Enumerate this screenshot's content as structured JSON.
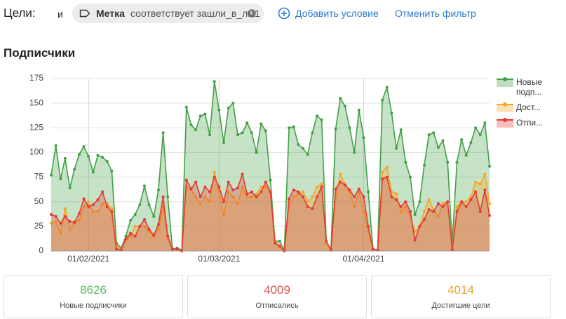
{
  "filter": {
    "label": "Цели:",
    "conjunction": "и",
    "condition": {
      "field": "Метка",
      "text": "соответствует зашли_в_лм1"
    },
    "add": "Добавить условие",
    "cancel": "Отменить фильтр"
  },
  "section_title": "Подписчики",
  "chart_data": {
    "type": "area",
    "x": [
      "24/01/2021",
      "25/01/2021",
      "26/01/2021",
      "27/01/2021",
      "28/01/2021",
      "29/01/2021",
      "30/01/2021",
      "31/01/2021",
      "01/02/2021",
      "02/02/2021",
      "03/02/2021",
      "04/02/2021",
      "05/02/2021",
      "06/02/2021",
      "07/02/2021",
      "08/02/2021",
      "09/02/2021",
      "10/02/2021",
      "11/02/2021",
      "12/02/2021",
      "13/02/2021",
      "14/02/2021",
      "15/02/2021",
      "16/02/2021",
      "17/02/2021",
      "18/02/2021",
      "19/02/2021",
      "20/02/2021",
      "21/02/2021",
      "22/02/2021",
      "23/02/2021",
      "24/02/2021",
      "25/02/2021",
      "26/02/2021",
      "27/02/2021",
      "28/02/2021",
      "01/03/2021",
      "02/03/2021",
      "03/03/2021",
      "04/03/2021",
      "05/03/2021",
      "06/03/2021",
      "07/03/2021",
      "08/03/2021",
      "09/03/2021",
      "10/03/2021",
      "11/03/2021",
      "12/03/2021",
      "13/03/2021",
      "14/03/2021",
      "15/03/2021",
      "16/03/2021",
      "17/03/2021",
      "18/03/2021",
      "19/03/2021",
      "20/03/2021",
      "21/03/2021",
      "22/03/2021",
      "23/03/2021",
      "24/03/2021",
      "25/03/2021",
      "26/03/2021",
      "27/03/2021",
      "28/03/2021",
      "29/03/2021",
      "30/03/2021",
      "31/03/2021",
      "01/04/2021",
      "02/04/2021",
      "03/04/2021",
      "04/04/2021",
      "05/04/2021",
      "06/04/2021",
      "07/04/2021",
      "08/04/2021",
      "09/04/2021",
      "10/04/2021",
      "11/04/2021",
      "12/04/2021",
      "13/04/2021",
      "14/04/2021",
      "15/04/2021",
      "16/04/2021",
      "17/04/2021",
      "18/04/2021",
      "19/04/2021",
      "20/04/2021",
      "21/04/2021",
      "22/04/2021",
      "23/04/2021",
      "24/04/2021",
      "25/04/2021",
      "26/04/2021",
      "27/04/2021",
      "28/04/2021"
    ],
    "series": [
      {
        "name": "Новые подп...",
        "color": "#43a047",
        "values": [
          77,
          107,
          73,
          94,
          64,
          83,
          98,
          106,
          96,
          80,
          97,
          95,
          91,
          81,
          8,
          3,
          15,
          31,
          37,
          47,
          66,
          47,
          35,
          62,
          120,
          55,
          2,
          3,
          1,
          146,
          128,
          123,
          137,
          139,
          118,
          172,
          143,
          110,
          145,
          150,
          118,
          120,
          130,
          120,
          100,
          129,
          122,
          72,
          10,
          10,
          1,
          125,
          126,
          108,
          104,
          98,
          120,
          137,
          133,
          8,
          2,
          124,
          155,
          147,
          125,
          100,
          143,
          115,
          60,
          2,
          1,
          153,
          166,
          140,
          104,
          123,
          90,
          75,
          37,
          50,
          87,
          118,
          120,
          105,
          112,
          90,
          8,
          90,
          113,
          97,
          110,
          125,
          118,
          130,
          86
        ]
      },
      {
        "name": "Дост...",
        "color": "#f5a623",
        "values": [
          28,
          30,
          18,
          43,
          22,
          30,
          31,
          45,
          50,
          40,
          40,
          48,
          48,
          43,
          5,
          2,
          12,
          15,
          25,
          25,
          25,
          20,
          15,
          22,
          45,
          12,
          2,
          2,
          0,
          65,
          62,
          55,
          48,
          55,
          50,
          80,
          60,
          37,
          60,
          55,
          48,
          65,
          55,
          55,
          58,
          65,
          65,
          60,
          10,
          5,
          0,
          45,
          55,
          58,
          60,
          50,
          55,
          65,
          68,
          8,
          2,
          55,
          78,
          68,
          60,
          45,
          60,
          40,
          20,
          2,
          1,
          80,
          85,
          60,
          58,
          40,
          45,
          35,
          20,
          25,
          40,
          52,
          42,
          35,
          48,
          50,
          3,
          45,
          50,
          50,
          55,
          70,
          68,
          78,
          48
        ]
      },
      {
        "name": "Отпи...",
        "color": "#e53935",
        "values": [
          37,
          35,
          28,
          35,
          30,
          29,
          38,
          53,
          45,
          47,
          52,
          60,
          45,
          40,
          2,
          1,
          12,
          18,
          15,
          25,
          32,
          22,
          16,
          27,
          55,
          15,
          2,
          2,
          0,
          72,
          63,
          70,
          55,
          65,
          60,
          75,
          65,
          50,
          70,
          62,
          64,
          78,
          58,
          60,
          55,
          60,
          70,
          60,
          8,
          5,
          0,
          53,
          62,
          60,
          55,
          45,
          43,
          55,
          65,
          10,
          1,
          63,
          70,
          67,
          62,
          55,
          63,
          55,
          25,
          2,
          1,
          73,
          75,
          55,
          52,
          45,
          50,
          40,
          11,
          25,
          32,
          42,
          40,
          48,
          45,
          50,
          1,
          40,
          50,
          45,
          52,
          60,
          40,
          62,
          36
        ]
      }
    ],
    "xticks": [
      "01/02/2021",
      "01/03/2021",
      "01/04/2021"
    ],
    "ylim": [
      0,
      175
    ],
    "yticks": [
      0,
      25,
      50,
      75,
      100,
      125,
      150,
      175
    ],
    "grid": true,
    "legend": "right"
  },
  "summary": [
    {
      "value": 8626,
      "label": "Новые подписчики",
      "color": "#5cb85c"
    },
    {
      "value": 4009,
      "label": "Отписались",
      "color": "#d9534f"
    },
    {
      "value": 4014,
      "label": "Достигшие цели",
      "color": "#f0a030"
    }
  ]
}
